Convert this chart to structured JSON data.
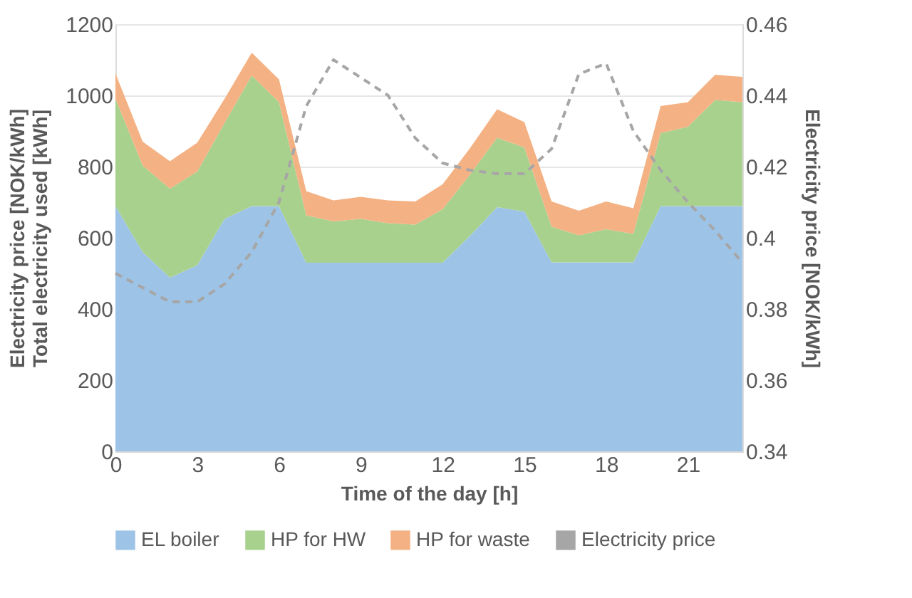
{
  "chart_data": {
    "type": "area",
    "stacked": true,
    "xlabel": "Time of the day [h]",
    "ylabel": "Electricity price [NOK/kWh]\nTotal electricity used [kWh]",
    "y2label": "Electricity price [NOK/kWh]",
    "x": [
      0,
      1,
      2,
      3,
      4,
      5,
      6,
      7,
      8,
      9,
      10,
      11,
      12,
      13,
      14,
      15,
      16,
      17,
      18,
      19,
      20,
      21,
      22,
      23
    ],
    "xlim": [
      0,
      23
    ],
    "xticks": [
      0,
      3,
      6,
      9,
      12,
      15,
      18,
      21
    ],
    "ylim": [
      0,
      1200
    ],
    "yticks": [
      0,
      200,
      400,
      600,
      800,
      1000,
      1200
    ],
    "y2lim": [
      0.34,
      0.46
    ],
    "y2ticks": [
      0.34,
      0.36,
      0.38,
      0.4,
      0.42,
      0.44,
      0.46
    ],
    "grid": "y",
    "legend": "bottom",
    "series": [
      {
        "name": "EL boiler",
        "color": "#9dc3e6",
        "values": [
          689,
          560,
          488,
          523,
          653,
          689,
          689,
          530,
          530,
          530,
          530,
          530,
          530,
          605,
          686,
          674,
          531,
          531,
          531,
          531,
          689,
          689,
          689,
          689
        ]
      },
      {
        "name": "HP for HW",
        "color": "#a9d18e",
        "values": [
          302,
          243,
          250,
          263,
          269,
          367,
          292,
          133,
          116,
          123,
          111,
          107,
          150,
          172,
          195,
          180,
          100,
          76,
          93,
          80,
          205,
          223,
          298,
          292
        ]
      },
      {
        "name": "HP for waste",
        "color": "#f4b183",
        "values": [
          71,
          67,
          77,
          81,
          68,
          64,
          64,
          68,
          59,
          62,
          64,
          65,
          70,
          74,
          80,
          71,
          71,
          69,
          78,
          72,
          76,
          69,
          71,
          71
        ]
      },
      {
        "name": "Electricity price",
        "color": "#a6a6a6",
        "type": "line",
        "axis": "y2",
        "line_style": "dashed",
        "values": [
          0.39,
          0.386,
          0.382,
          0.382,
          0.387,
          0.396,
          0.41,
          0.437,
          0.45,
          0.445,
          0.44,
          0.428,
          0.421,
          0.419,
          0.418,
          0.418,
          0.425,
          0.446,
          0.449,
          0.43,
          0.419,
          0.41,
          0.402,
          0.393
        ]
      }
    ]
  }
}
